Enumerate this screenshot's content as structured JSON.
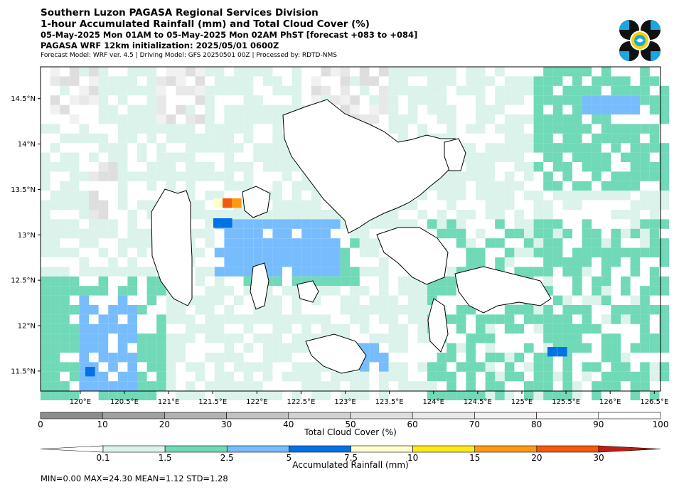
{
  "header": {
    "title_line1": "Southern Luzon PAGASA Regional Services Division",
    "title_line2": "1-hour Accumulated Rainfall (mm) and Total Cloud Cover (%)",
    "title_line3": "05-May-2025 Mon 01AM to 05-May-2025 Mon 02AM PhST [forecast +083 to +084]",
    "title_line4": "PAGASA WRF 12km initialization: 2025/05/01 0600Z",
    "title_line5": "Forecast Model: WRF ver. 4.5 | Driving Model: GFS 20250501 00Z | Processed by: RDTD-NMS"
  },
  "map": {
    "lon_ticks": [
      "120°E",
      "120.5°E",
      "121°E",
      "121.5°E",
      "122°E",
      "122.5°E",
      "123°E",
      "123.5°E",
      "124°E",
      "124.5°E",
      "125°E",
      "125.5°E",
      "126°E",
      "126.5°E"
    ],
    "lat_ticks": [
      "14.5°N",
      "14°N",
      "13.5°N",
      "13°N",
      "12.5°N",
      "12°N",
      "11.5°N"
    ],
    "lon_values": [
      120,
      120.5,
      121,
      121.5,
      122,
      122.5,
      123,
      123.5,
      124,
      124.5,
      125,
      125.5,
      126,
      126.5
    ],
    "lat_values": [
      14.5,
      14,
      13.5,
      13,
      12.5,
      12,
      11.5
    ],
    "extent": {
      "lon_min": 119.55,
      "lon_max": 126.57,
      "lat_min": 11.28,
      "lat_max": 14.85
    }
  },
  "cloud_colorbar": {
    "label": "Total Cloud Cover (%)",
    "ticks": [
      "0",
      "10",
      "20",
      "30",
      "40",
      "50",
      "60",
      "70",
      "80",
      "90",
      "100"
    ],
    "colors": [
      "#8c8c8c",
      "#a0a0a0",
      "#b1b1b1",
      "#c2c2c2",
      "#d1d1d1",
      "#dedede",
      "#e8e8e8",
      "#f1f1f1",
      "#f8f8f8",
      "#ffffff"
    ]
  },
  "rain_colorbar": {
    "label": "Accumulated Rainfall (mm)",
    "ticks": [
      "0.1",
      "1.5",
      "2.5",
      "5",
      "7.5",
      "10",
      "15",
      "20",
      "30"
    ],
    "colors": [
      "#ffffff",
      "#dbf3ea",
      "#70d9b7",
      "#77bdfd",
      "#0072e5",
      "#ffffcc",
      "#ffe815",
      "#ff9914",
      "#f25b0b",
      "#c21d12"
    ]
  },
  "stats": {
    "text": "MIN=0.00   MAX=24.30   MEAN=1.12   STD=1.28"
  }
}
